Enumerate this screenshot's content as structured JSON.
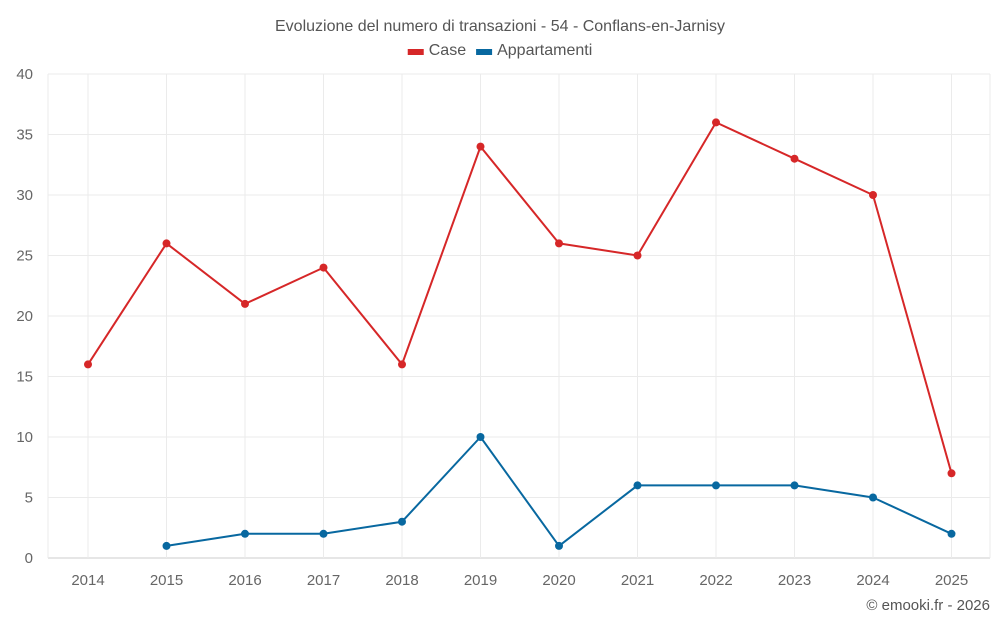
{
  "chart_data": {
    "type": "line",
    "title": "Evoluzione del numero di transazioni - 54 - Conflans-en-Jarnisy",
    "x": [
      "2014",
      "2015",
      "2016",
      "2017",
      "2018",
      "2019",
      "2020",
      "2021",
      "2022",
      "2023",
      "2024",
      "2025"
    ],
    "ylim": [
      0,
      40
    ],
    "yticks": [
      0,
      5,
      10,
      15,
      20,
      25,
      30,
      35,
      40
    ],
    "grid": true,
    "legend_position": "top-center",
    "series": [
      {
        "name": "Case",
        "color": "#d62728",
        "values": [
          16,
          26,
          21,
          24,
          16,
          34,
          26,
          25,
          36,
          33,
          30,
          7
        ]
      },
      {
        "name": "Appartamenti",
        "color": "#0868a0",
        "values": [
          null,
          1,
          2,
          2,
          3,
          10,
          1,
          6,
          6,
          6,
          5,
          2
        ]
      }
    ],
    "credit": "© emooki.fr - 2026"
  }
}
